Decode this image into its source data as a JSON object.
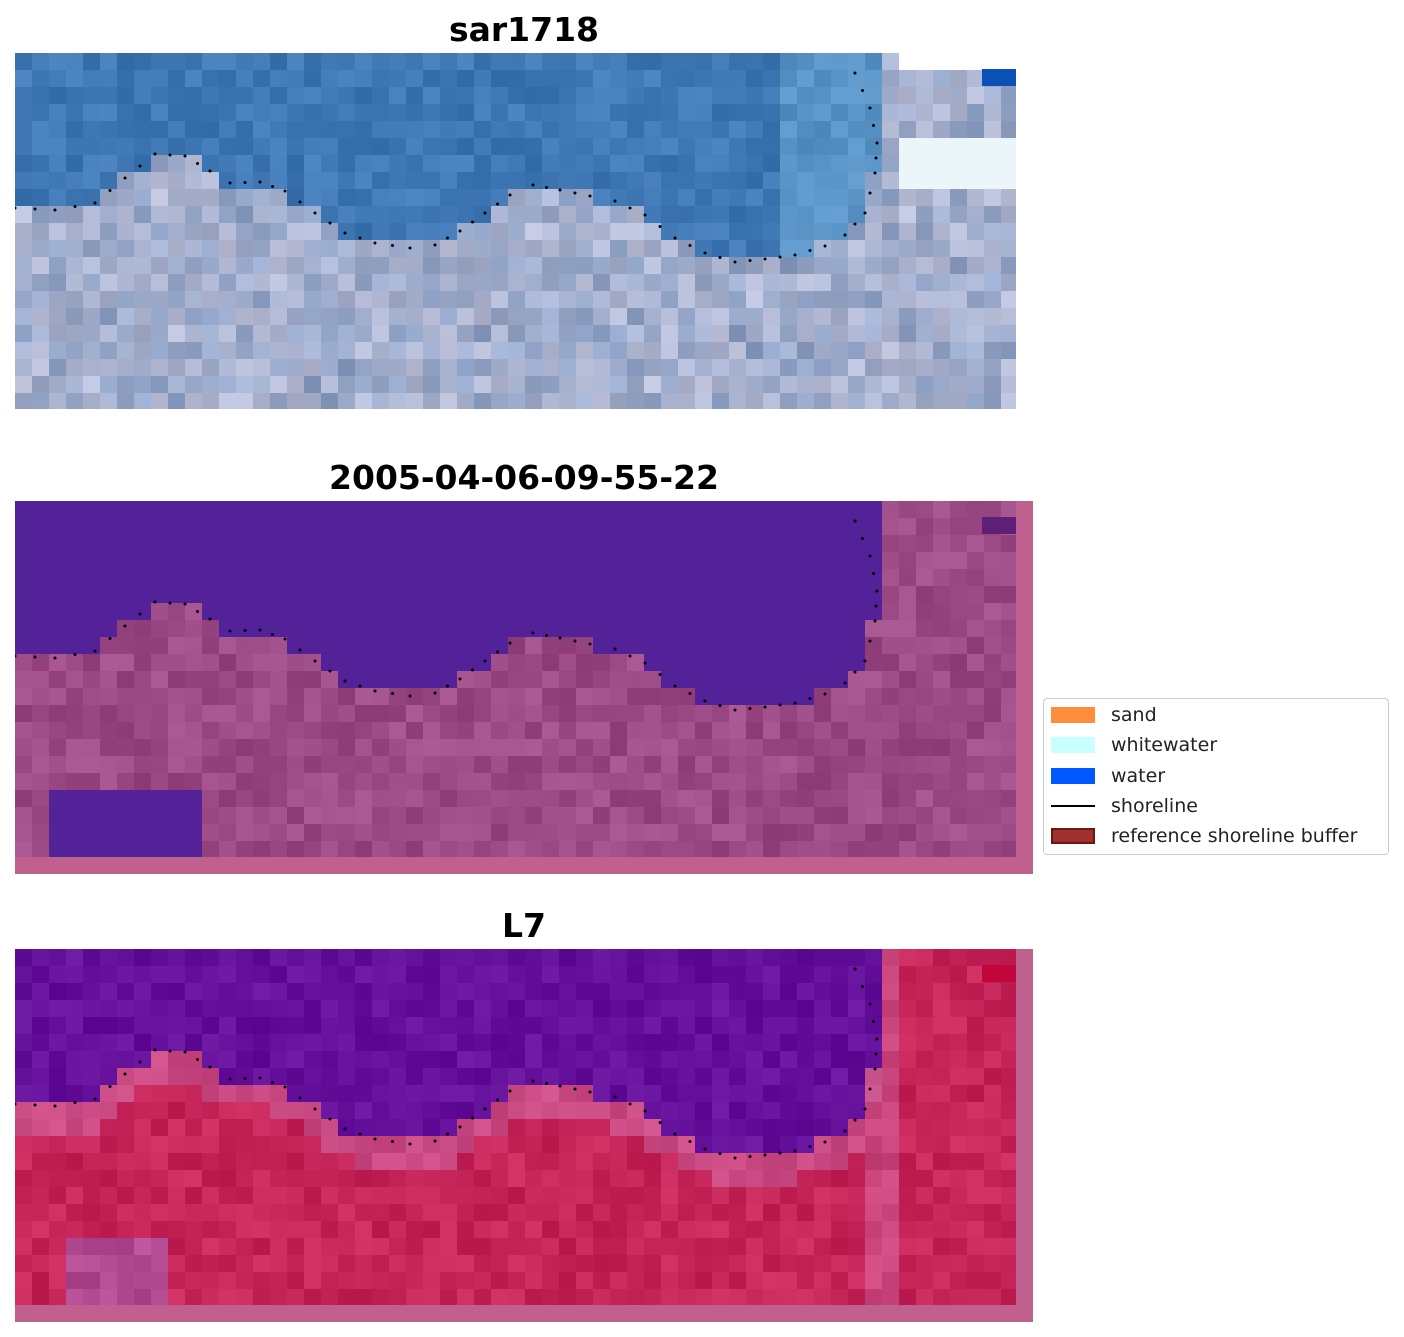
{
  "panels": [
    {
      "title": "sar1718",
      "style": "rgb"
    },
    {
      "title": "2005-04-06-09-55-22",
      "style": "classified"
    },
    {
      "title": "L7",
      "style": "index"
    }
  ],
  "legend": {
    "items": [
      {
        "label": "sand",
        "kind": "patch",
        "color": "#ff8c3a"
      },
      {
        "label": "whitewater",
        "kind": "patch",
        "color": "#c8ffff"
      },
      {
        "label": "water",
        "kind": "patch",
        "color": "#0059ff"
      },
      {
        "label": "shoreline",
        "kind": "line",
        "color": "#000000"
      },
      {
        "label": "reference shoreline buffer",
        "kind": "patch",
        "color": "#a0302e"
      }
    ]
  },
  "colors": {
    "rgb_water": "#3f78b4",
    "rgb_land": "#8ca0c4",
    "class_water": "#532198",
    "class_land": "#9b4a86",
    "class_border": "#c0608f",
    "index_water": "#64109a",
    "index_land": "#c52558",
    "index_border": "#c0608f",
    "shoreline": "#000000"
  }
}
